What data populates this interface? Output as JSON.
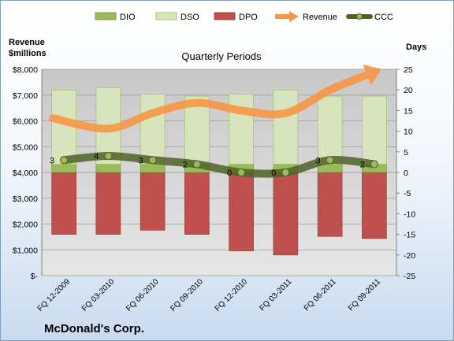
{
  "chart_data": {
    "type": "bar",
    "title": "Quarterly Periods",
    "company": "McDonald's Corp.",
    "y_left_label_line1": "Revenue",
    "y_left_label_line2": "$millions",
    "y_right_label": "Days",
    "y_left_lim": [
      0,
      8000
    ],
    "y_left_ticks": [
      "$-",
      "$1,000",
      "$2,000",
      "$3,000",
      "$4,000",
      "$5,000",
      "$6,000",
      "$7,000",
      "$8,000"
    ],
    "y_right_lim": [
      -25,
      25
    ],
    "y_right_ticks": [
      "-25",
      "-20",
      "-15",
      "-10",
      "-5",
      "0",
      "5",
      "10",
      "15",
      "20",
      "25"
    ],
    "categories": [
      "FQ 12-2009",
      "FQ 03-2010",
      "FQ 06-2010",
      "FQ 09-2010",
      "FQ 12-2010",
      "FQ 03-2011",
      "FQ 06-2011",
      "FQ 09-2011"
    ],
    "series": [
      {
        "name": "DIO",
        "axis": "days",
        "values": [
          2,
          2,
          2,
          2,
          2,
          2,
          2,
          2
        ],
        "color": "#9bbb59"
      },
      {
        "name": "DSO",
        "axis": "days",
        "values": [
          18,
          18.5,
          17,
          16.5,
          17,
          18,
          16.5,
          16.5
        ],
        "color": "#d7e4bd"
      },
      {
        "name": "DPO",
        "axis": "days",
        "values": [
          -15,
          -15,
          -14,
          -15,
          -19,
          -20,
          -15.5,
          -16
        ],
        "color": "#c0504d"
      },
      {
        "name": "Revenue",
        "axis": "revenue",
        "values": [
          6100,
          5700,
          6300,
          6700,
          6400,
          6300,
          7200,
          7900
        ],
        "color": "#f79646"
      },
      {
        "name": "CCC",
        "axis": "days",
        "values": [
          3,
          4,
          3,
          2,
          0,
          0,
          3,
          2
        ],
        "color": "#4f6228"
      }
    ],
    "ccc_labels": [
      "3",
      "4",
      "3",
      "2",
      "0",
      "0",
      "3",
      "2"
    ],
    "legend": [
      "DIO",
      "DSO",
      "DPO",
      "Revenue",
      "CCC"
    ],
    "legend_position": "top",
    "grid": true,
    "plot_background": "#d9d9d9"
  }
}
